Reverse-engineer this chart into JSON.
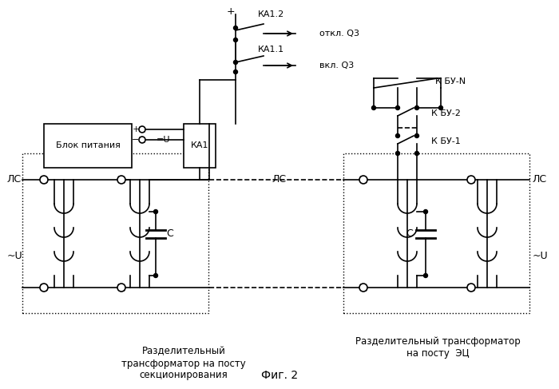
{
  "title": "Фиг. 2",
  "bg_color": "#ffffff",
  "line_color": "#000000",
  "dashed_color": "#000000",
  "figsize": [
    7.0,
    4.87
  ],
  "dpi": 100,
  "labels": {
    "ls_left": "ЛС",
    "ls_middle": "ЛС",
    "ls_right": "ЛС",
    "u_left": "~U",
    "u_right": "~U",
    "plus_top": "+",
    "ka12": "КА1.2",
    "ka11": "КА1.1",
    "otkl": "откл. Q3",
    "vkl": "вкл. Q3",
    "blok": "Блок питания",
    "eq_u": "=U",
    "ka1": "КА1",
    "cap_left": "C",
    "cap_right": "C",
    "kbu_n": "К БУ-N",
    "kbu_2": "К БУ-2",
    "kbu_1": "К БУ-1",
    "razd_left": "Разделительный\nтрансформатор на посту\nсекционирования",
    "razd_right": "Разделительный трансформатор\nна посту  ЭЦ"
  }
}
